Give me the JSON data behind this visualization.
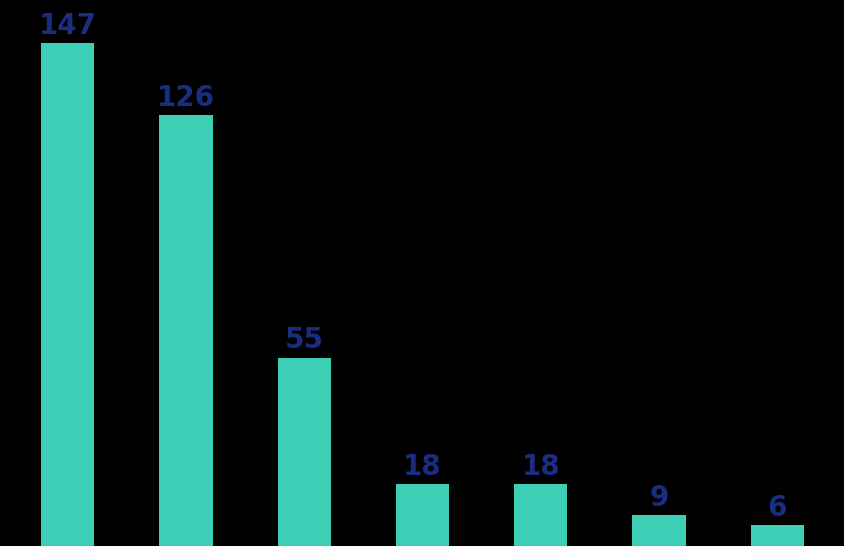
{
  "values": [
    147,
    126,
    55,
    18,
    18,
    9,
    6
  ],
  "bar_color": "#3dcfb6",
  "label_color": "#1a2d80",
  "background_color": "#000000",
  "bar_width": 0.45,
  "label_fontsize": 20,
  "label_fontweight": "bold",
  "ylim": [
    0,
    158
  ],
  "figsize": [
    8.45,
    5.46
  ],
  "dpi": 100
}
